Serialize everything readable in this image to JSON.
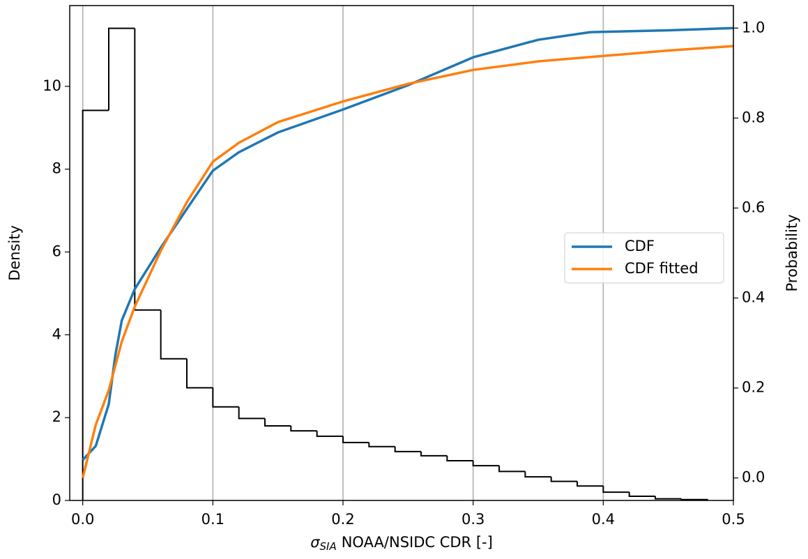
{
  "chart_data": {
    "type": "histogram",
    "xlabel": {
      "symbol": "σ",
      "subscript": "SIA",
      "text": "NOAA/NSIDC CDR [-]"
    },
    "ylabel": "Density",
    "y2label": "Probability",
    "bins": [
      0,
      0.02,
      0.04,
      0.06,
      0.08,
      0.1,
      0.12,
      0.14,
      0.16,
      0.18,
      0.2,
      0.22,
      0.24,
      0.26,
      0.28,
      0.3,
      0.32,
      0.34,
      0.36,
      0.38,
      0.4,
      0.42,
      0.44,
      0.46,
      0.48
    ],
    "values": [
      9.42,
      11.4,
      4.6,
      3.42,
      2.72,
      2.26,
      1.98,
      1.8,
      1.68,
      1.55,
      1.4,
      1.3,
      1.18,
      1.08,
      0.96,
      0.84,
      0.7,
      0.57,
      0.46,
      0.35,
      0.2,
      0.1,
      0.04,
      0.02
    ],
    "color": "#000000",
    "series": [
      {
        "name": "CDF",
        "color": "#1f77b4",
        "axis": "y2",
        "x": [
          0,
          0.01,
          0.02,
          0.025,
          0.03,
          0.04,
          0.06,
          0.08,
          0.1,
          0.12,
          0.15,
          0.2,
          0.25,
          0.3,
          0.35,
          0.39,
          0.45,
          0.5
        ],
        "values": [
          0.04,
          0.071,
          0.164,
          0.272,
          0.35,
          0.42,
          0.512,
          0.598,
          0.683,
          0.724,
          0.768,
          0.819,
          0.873,
          0.935,
          0.974,
          0.991,
          0.995,
          1.0
        ]
      },
      {
        "name": "CDF fitted",
        "color": "#ff7f0e",
        "axis": "y2",
        "x": [
          0,
          0.01,
          0.02,
          0.03,
          0.04,
          0.06,
          0.08,
          0.1,
          0.12,
          0.15,
          0.2,
          0.25,
          0.3,
          0.35,
          0.4,
          0.45,
          0.5
        ],
        "values": [
          0,
          0.118,
          0.195,
          0.303,
          0.381,
          0.505,
          0.613,
          0.703,
          0.745,
          0.791,
          0.837,
          0.876,
          0.907,
          0.926,
          0.938,
          0.95,
          0.96
        ]
      }
    ],
    "xlim": [
      -0.01,
      0.5
    ],
    "ylim": [
      0,
      11.95
    ],
    "y2lim": [
      -0.05,
      1.05
    ],
    "xticks": [
      {
        "value": 0,
        "label": "0.0"
      },
      0.1,
      0.2,
      0.3,
      0.4,
      0.5
    ],
    "yticks": [
      0,
      2,
      4,
      6,
      8,
      10
    ],
    "y2ticks": [
      {
        "value": 0,
        "label": "0.0"
      },
      0.2,
      0.4,
      0.6,
      0.8,
      {
        "value": 1,
        "label": "1.0"
      }
    ],
    "grid": "x",
    "legend": "center right"
  }
}
